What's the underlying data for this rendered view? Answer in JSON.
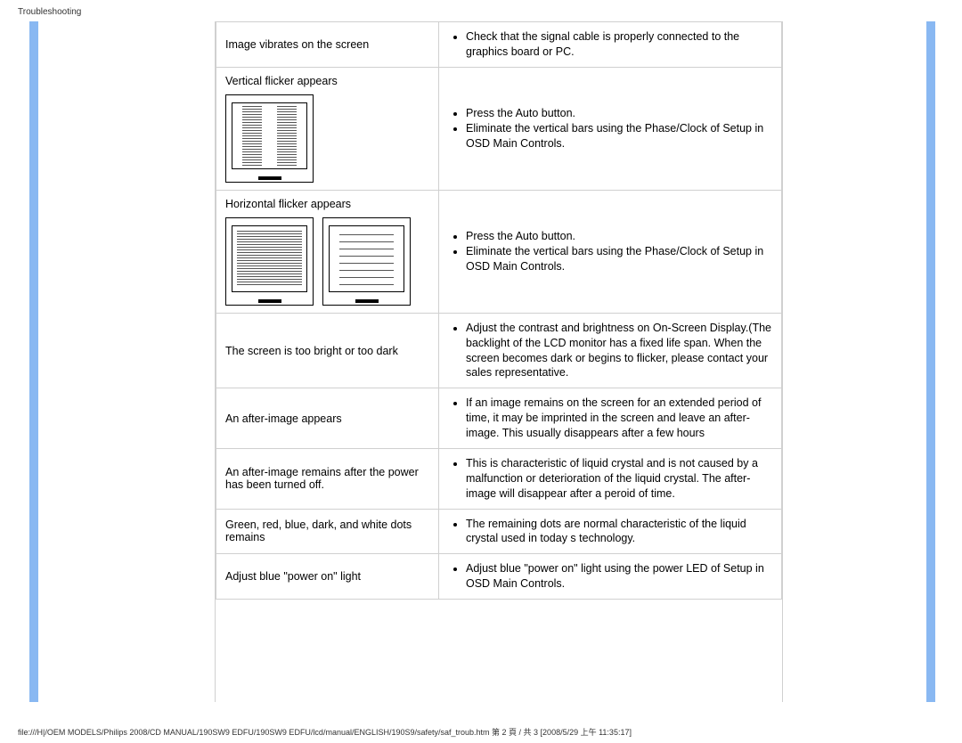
{
  "header": {
    "title": "Troubleshooting"
  },
  "colors": {
    "side_bar": "#89b8f2",
    "border": "#d0d0d0",
    "text": "#000000"
  },
  "rows": [
    {
      "problem": "Image vibrates on the screen",
      "solutions": [
        "Check that the signal cable is properly connected to the graphics board or PC."
      ]
    },
    {
      "problem": "Vertical flicker appears",
      "has_vert_img": true,
      "solutions": [
        "Press the Auto button.",
        "Eliminate the vertical bars using the Phase/Clock of Setup in OSD Main Controls."
      ]
    },
    {
      "problem": "Horizontal flicker appears",
      "has_hz_img": true,
      "solutions": [
        "Press the Auto button.",
        "Eliminate the vertical bars using the Phase/Clock of Setup in OSD Main Controls."
      ]
    },
    {
      "problem": "The screen is too bright or too dark",
      "solutions": [
        "Adjust the contrast and brightness on On-Screen Display.(The backlight of the LCD monitor has a fixed life span. When the screen becomes dark or begins to flicker, please contact your sales representative."
      ]
    },
    {
      "problem": "An after-image appears",
      "solutions": [
        "If an image remains on the screen for an extended period of time, it may be imprinted in the screen and leave an after-image. This usually disappears after a few hours"
      ]
    },
    {
      "problem": "An after-image remains after the power has been turned off.",
      "solutions": [
        "This is characteristic of liquid crystal and is not caused by a malfunction or deterioration of the liquid crystal. The after-image will disappear after a peroid of time."
      ]
    },
    {
      "problem": "Green, red, blue, dark, and white dots remains",
      "solutions": [
        "The remaining dots are normal characteristic of the liquid crystal used in today s technology."
      ]
    },
    {
      "problem": "Adjust blue \"power on\" light",
      "solutions": [
        "Adjust blue \"power on\" light using the power LED of Setup in OSD Main Controls."
      ]
    }
  ],
  "footer": {
    "text": "file:///H|/OEM MODELS/Philips 2008/CD MANUAL/190SW9 EDFU/190SW9 EDFU/lcd/manual/ENGLISH/190S9/safety/saf_troub.htm 第 2 頁 / 共 3  [2008/5/29 上午 11:35:17]"
  }
}
